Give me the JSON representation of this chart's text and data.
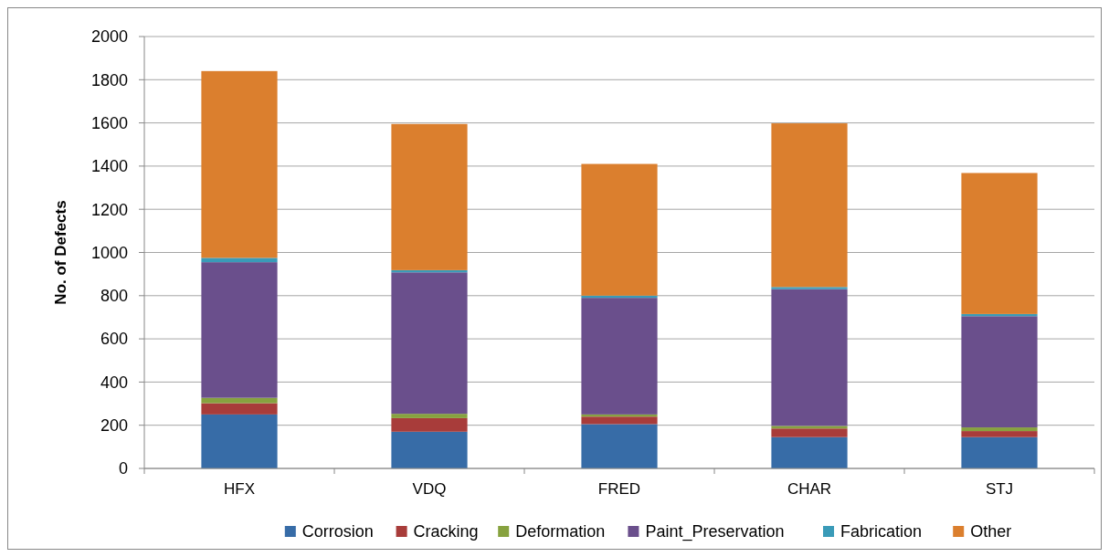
{
  "chart_data": {
    "type": "bar",
    "stacked": true,
    "ylabel": "No. of Defects",
    "categories": [
      "HFX",
      "VDQ",
      "FRED",
      "CHAR",
      "STJ"
    ],
    "series": [
      {
        "name": "Corrosion",
        "color": "#376ca7",
        "values": [
          250,
          170,
          205,
          145,
          145
        ]
      },
      {
        "name": "Cracking",
        "color": "#a83c3a",
        "values": [
          52,
          63,
          35,
          40,
          28
        ]
      },
      {
        "name": "Deformation",
        "color": "#87a23f",
        "values": [
          25,
          20,
          10,
          12,
          17
        ]
      },
      {
        "name": "Paint_Preservation",
        "color": "#6a4f8c",
        "values": [
          628,
          655,
          540,
          633,
          515
        ]
      },
      {
        "name": "Fabrication",
        "color": "#3a9bb8",
        "values": [
          20,
          10,
          10,
          10,
          10
        ]
      },
      {
        "name": "Other",
        "color": "#db7f2e",
        "values": [
          865,
          677,
          610,
          758,
          653
        ]
      }
    ],
    "ylim": [
      0,
      2000
    ],
    "yticks": [
      0,
      200,
      400,
      600,
      800,
      1000,
      1200,
      1400,
      1600,
      1800,
      2000
    ],
    "grid": "y",
    "legend": "bottom"
  }
}
